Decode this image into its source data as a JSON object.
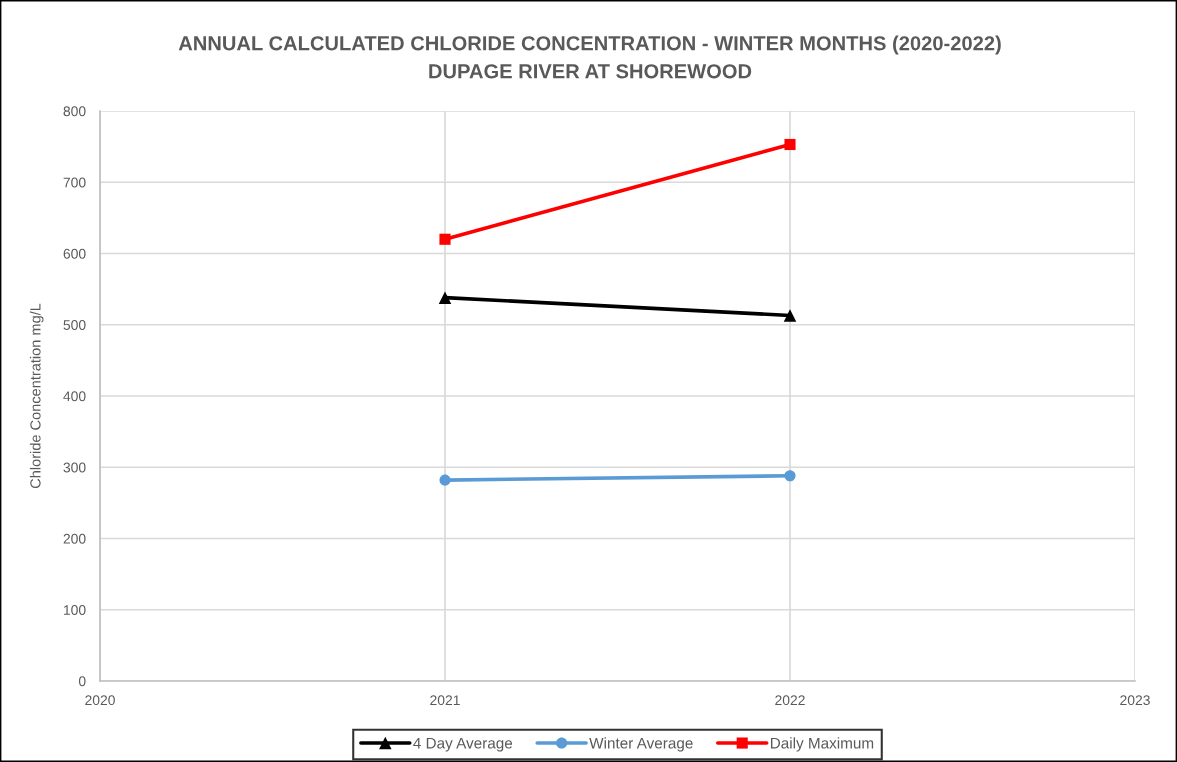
{
  "chart_data": {
    "type": "line",
    "title": "ANNUAL CALCULATED CHLORIDE CONCENTRATION - WINTER MONTHS (2020-2022)",
    "subtitle": "DUPAGE RIVER AT SHOREWOOD",
    "ylabel": "Chloride Concentration mg/L",
    "x": [
      2021,
      2022
    ],
    "series": [
      {
        "name": "4 Day Average",
        "color": "#000000",
        "marker": "triangle",
        "values": [
          538,
          513
        ]
      },
      {
        "name": "Winter Average",
        "color": "#5b9bd5",
        "marker": "circle",
        "values": [
          282,
          288
        ]
      },
      {
        "name": "Daily Maximum",
        "color": "#ff0000",
        "marker": "square",
        "values": [
          620,
          753
        ]
      }
    ],
    "xlim": [
      2020,
      2023
    ],
    "xticks": [
      2020,
      2021,
      2022,
      2023
    ],
    "ylim": [
      0,
      800
    ],
    "yticks": [
      0,
      100,
      200,
      300,
      400,
      500,
      600,
      700,
      800
    ],
    "grid": true,
    "legend": "bottom",
    "line_style": "solid"
  }
}
